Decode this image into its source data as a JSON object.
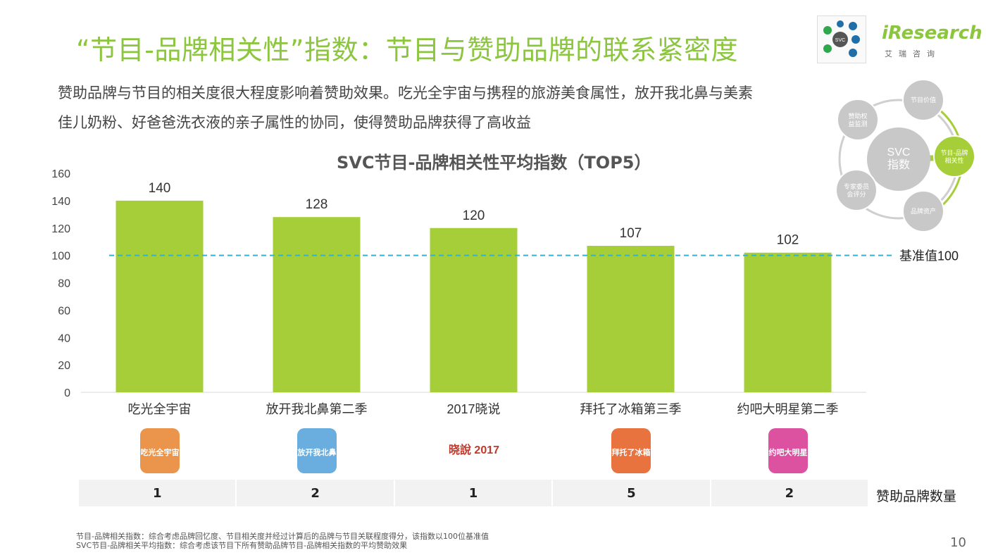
{
  "header": {
    "title": "“节目-品牌相关性”指数：节目与赞助品牌的联系紧密度",
    "brand_name": "iResearch",
    "brand_sub": "艾瑞咨询",
    "brand_icon_center": "SVC"
  },
  "intro": {
    "line1": "赞助品牌与节目的相关度很大程度影响着赞助效果。吃光全宇宙与携程的旅游美食属性，放开我北鼻与美素",
    "line2": "佳儿奶粉、好爸爸洗衣液的亲子属性的协同，使得赞助品牌获得了高收益"
  },
  "svc_diagram": {
    "center": "SVC\n指数",
    "nodes": [
      {
        "label": "节目价值",
        "highlight": false
      },
      {
        "label": "节目-品牌\n相关性",
        "highlight": true
      },
      {
        "label": "品牌资产",
        "highlight": false
      },
      {
        "label": "专家委员\n会评分",
        "highlight": false
      },
      {
        "label": "赞助权\n益监测",
        "highlight": false
      }
    ]
  },
  "chart_data": {
    "type": "bar",
    "title": "SVC节目-品牌相关性平均指数（TOP5）",
    "categories": [
      "吃光全宇宙",
      "放开我北鼻第二季",
      "2017晓说",
      "拜托了冰箱第三季",
      "约吧大明星第二季"
    ],
    "values": [
      140,
      128,
      120,
      107,
      102
    ],
    "ylim": [
      0,
      160
    ],
    "yticks": [
      0,
      20,
      40,
      60,
      80,
      100,
      120,
      140,
      160
    ],
    "baseline": {
      "value": 100,
      "label": "基准值100"
    },
    "bar_color": "#a6ce39",
    "baseline_color": "#29b6d6",
    "grid": false
  },
  "sponsor_counts": {
    "label": "赞助品牌数量",
    "values": [
      "1",
      "2",
      "1",
      "5",
      "2"
    ]
  },
  "logos": [
    "吃光全宇宙",
    "放开我北鼻",
    "晓說 2017",
    "拜托了冰箱",
    "约吧大明星"
  ],
  "footnotes": {
    "line1": "节目-品牌相关指数：综合考虑品牌回忆度、节目相关度并经过计算后的品牌与节目关联程度得分，该指数以100位基准值",
    "line2": "SVC节目-品牌相关平均指数：综合考虑该节目下所有赞助品牌节目-品牌相关指数的平均赞助效果"
  },
  "page_number": "10"
}
